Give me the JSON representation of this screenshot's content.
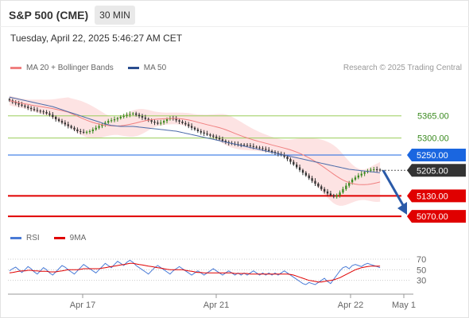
{
  "header": {
    "title": "S&P 500 (CME)",
    "timeframe": "30 MIN",
    "timestamp": "Tuesday, April 22, 2025 5:46:27 AM CET"
  },
  "legend": {
    "items": [
      {
        "label": "MA 20 + Bollinger Bands",
        "color": "#f08080"
      },
      {
        "label": "MA 50",
        "color": "#2a4d8f"
      }
    ],
    "credit": "Research © 2025 Trading Central"
  },
  "rsi_legend": {
    "items": [
      {
        "label": "RSI",
        "color": "#4a7bd6"
      },
      {
        "label": "9MA",
        "color": "#e00000"
      }
    ]
  },
  "colors": {
    "up_candle": "#3a8a1f",
    "down_candle": "#333333",
    "bollinger_fill": "#fde0e0",
    "ma20": "#f08080",
    "ma50": "#4a6aa8",
    "resistance": "#9acd5a",
    "pivot": "#1a66e0",
    "support": "#e00000",
    "arrow": "#2a5aa8"
  },
  "chart_data": [
    {
      "type": "candlestick",
      "y_range": [
        5040,
        5460
      ],
      "x_ticks": [
        "Apr 17",
        "Apr 21",
        "Apr 22",
        "May 1"
      ],
      "levels": [
        {
          "value": 5365.0,
          "label": "5365.00",
          "kind": "resistance"
        },
        {
          "value": 5300.0,
          "label": "5300.00",
          "kind": "resistance"
        },
        {
          "value": 5250.0,
          "label": "5250.00",
          "kind": "pivot"
        },
        {
          "value": 5205.0,
          "label": "5205.00",
          "kind": "last"
        },
        {
          "value": 5130.0,
          "label": "5130.00",
          "kind": "support"
        },
        {
          "value": 5070.0,
          "label": "5070.00",
          "kind": "support"
        }
      ],
      "close": [
        5410,
        5405,
        5402,
        5398,
        5395,
        5392,
        5388,
        5385,
        5382,
        5380,
        5378,
        5376,
        5372,
        5368,
        5362,
        5355,
        5350,
        5345,
        5340,
        5335,
        5330,
        5325,
        5320,
        5318,
        5316,
        5318,
        5320,
        5325,
        5330,
        5335,
        5340,
        5345,
        5350,
        5352,
        5355,
        5358,
        5362,
        5365,
        5368,
        5370,
        5372,
        5368,
        5364,
        5360,
        5356,
        5352,
        5348,
        5345,
        5342,
        5345,
        5350,
        5355,
        5358,
        5356,
        5352,
        5348,
        5344,
        5340,
        5335,
        5330,
        5325,
        5320,
        5316,
        5313,
        5310,
        5307,
        5304,
        5300,
        5296,
        5292,
        5288,
        5285,
        5283,
        5282,
        5281,
        5280,
        5279,
        5278,
        5276,
        5274,
        5272,
        5270,
        5268,
        5265,
        5262,
        5259,
        5256,
        5253,
        5250,
        5245,
        5238,
        5230,
        5222,
        5214,
        5206,
        5198,
        5190,
        5182,
        5174,
        5166,
        5158,
        5150,
        5143,
        5137,
        5132,
        5128,
        5132,
        5140,
        5150,
        5160,
        5170,
        5178,
        5184,
        5190,
        5195,
        5200,
        5204,
        5207,
        5208,
        5207,
        5205
      ],
      "ma50": [
        5420,
        5418,
        5416,
        5414,
        5412,
        5410,
        5408,
        5406,
        5404,
        5402,
        5400,
        5398,
        5396,
        5394,
        5392,
        5389,
        5386,
        5383,
        5380,
        5377,
        5374,
        5371,
        5368,
        5365,
        5362,
        5359,
        5356,
        5353,
        5350,
        5347,
        5344,
        5341,
        5339,
        5337,
        5336,
        5335,
        5334,
        5334,
        5334,
        5334,
        5334,
        5333,
        5332,
        5331,
        5330,
        5329,
        5328,
        5327,
        5326,
        5325,
        5324,
        5323,
        5322,
        5321,
        5320,
        5318,
        5316,
        5314,
        5312,
        5310,
        5308,
        5306,
        5304,
        5302,
        5300,
        5298,
        5296,
        5294,
        5292,
        5290,
        5288,
        5286,
        5284,
        5282,
        5280,
        5278,
        5276,
        5274,
        5272,
        5270,
        5268,
        5266,
        5264,
        5262,
        5260,
        5258,
        5256,
        5254,
        5252,
        5250,
        5248,
        5246,
        5244,
        5242,
        5240,
        5238,
        5236,
        5234,
        5232,
        5230,
        5228,
        5226,
        5224,
        5222,
        5220,
        5218,
        5216,
        5214,
        5212,
        5210,
        5208,
        5207,
        5206,
        5205,
        5204,
        5203,
        5202,
        5201,
        5200,
        5199,
        5198
      ]
    },
    {
      "type": "line",
      "name_rsi": "RSI",
      "name_ma": "9MA",
      "y_range": [
        10,
        85
      ],
      "y_ticks": [
        70,
        50,
        30
      ],
      "rsi": [
        48,
        52,
        55,
        50,
        45,
        50,
        56,
        52,
        46,
        42,
        48,
        54,
        50,
        44,
        40,
        46,
        52,
        58,
        55,
        50,
        46,
        42,
        48,
        54,
        60,
        56,
        52,
        48,
        44,
        50,
        56,
        62,
        58,
        54,
        60,
        66,
        62,
        58,
        64,
        68,
        64,
        58,
        54,
        50,
        46,
        42,
        48,
        54,
        58,
        54,
        50,
        46,
        42,
        48,
        52,
        56,
        52,
        48,
        44,
        40,
        44,
        48,
        44,
        40,
        44,
        48,
        52,
        48,
        44,
        40,
        44,
        48,
        44,
        40,
        44,
        40,
        44,
        40,
        44,
        48,
        44,
        40,
        44,
        40,
        44,
        40,
        44,
        40,
        44,
        48,
        44,
        40,
        36,
        32,
        28,
        24,
        22,
        26,
        24,
        22,
        26,
        30,
        34,
        28,
        24,
        32,
        40,
        48,
        54,
        56,
        52,
        58,
        60,
        58,
        56,
        60,
        62,
        60,
        58,
        56,
        54
      ],
      "ma9": [
        44,
        45,
        46,
        47,
        48,
        48,
        49,
        49,
        48,
        48,
        47,
        47,
        47,
        46,
        46,
        46,
        47,
        48,
        49,
        50,
        50,
        50,
        50,
        51,
        52,
        52,
        52,
        52,
        52,
        52,
        53,
        54,
        55,
        56,
        57,
        58,
        59,
        60,
        61,
        62,
        62,
        61,
        60,
        59,
        58,
        57,
        56,
        55,
        54,
        53,
        52,
        51,
        50,
        50,
        50,
        50,
        50,
        49,
        48,
        47,
        46,
        45,
        45,
        44,
        44,
        44,
        44,
        44,
        44,
        44,
        44,
        44,
        44,
        43,
        43,
        43,
        43,
        43,
        42,
        42,
        42,
        42,
        42,
        42,
        42,
        42,
        42,
        42,
        42,
        42,
        42,
        41,
        40,
        38,
        36,
        34,
        32,
        30,
        29,
        28,
        27,
        27,
        28,
        29,
        30,
        31,
        33,
        35,
        38,
        41,
        44,
        47,
        50,
        52,
        54,
        55,
        56,
        57,
        57,
        57,
        57
      ]
    }
  ]
}
